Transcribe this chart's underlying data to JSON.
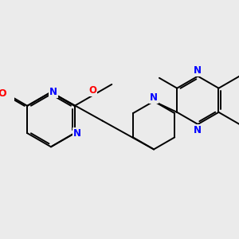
{
  "bg_color": "#ebebeb",
  "bond_color": "#000000",
  "n_color": "#0000ff",
  "o_color": "#ff0000",
  "lw": 1.4,
  "dbo": 0.055,
  "fs": 8.5,
  "fig_w": 3.0,
  "fig_h": 3.0,
  "dpi": 100,
  "xlim": [
    -3.2,
    3.8
  ],
  "ylim": [
    -2.5,
    2.5
  ]
}
